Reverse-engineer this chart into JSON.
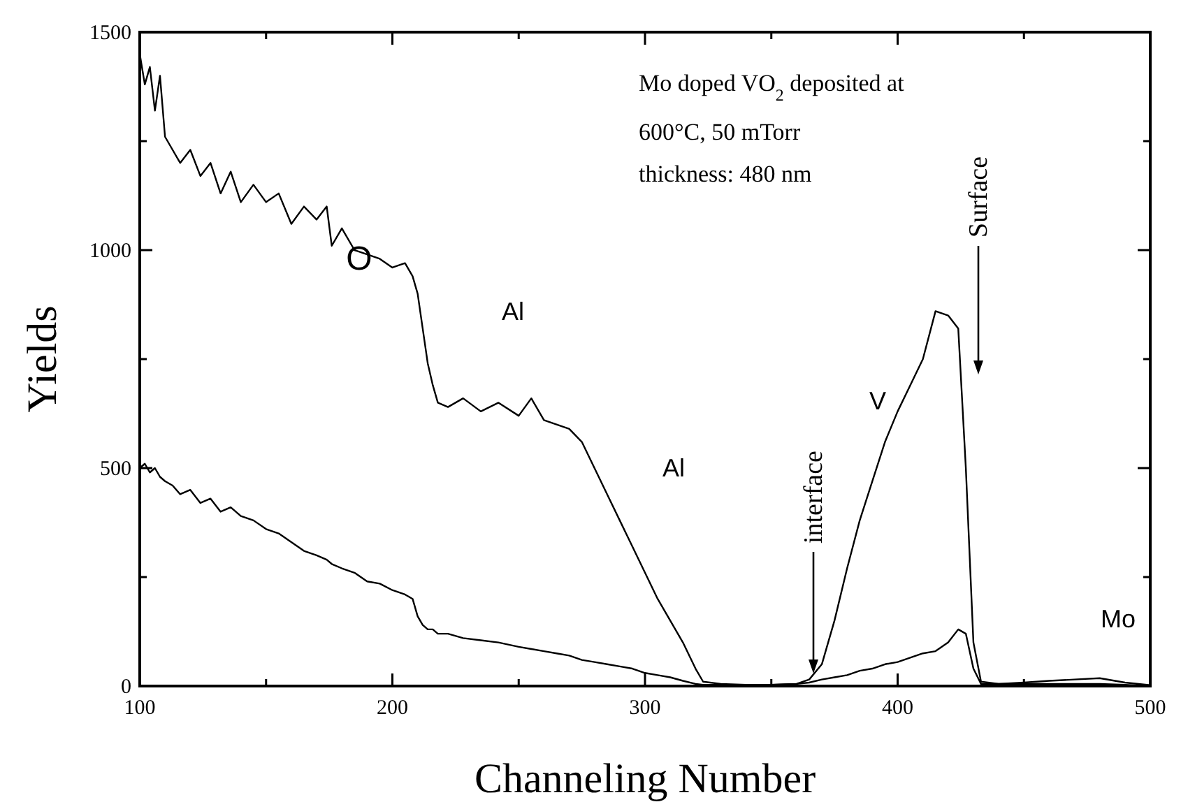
{
  "chart_data": {
    "type": "line",
    "xlabel": "Channeling Number",
    "ylabel": "Yields",
    "xlim": [
      100,
      500
    ],
    "ylim": [
      0,
      1500
    ],
    "xticks": [
      100,
      {
        "value": 150,
        "label": null
      },
      200,
      {
        "value": 250,
        "label": null
      },
      300,
      {
        "value": 350,
        "label": null
      },
      400,
      {
        "value": 450,
        "label": null
      },
      500
    ],
    "yticks": [
      0,
      {
        "value": 250,
        "label": null
      },
      500,
      {
        "value": 750,
        "label": null
      },
      1000,
      {
        "value": 1250,
        "label": null
      },
      1500
    ],
    "grid": false,
    "marker": "none",
    "line_style": "solid",
    "x": [
      100,
      102,
      104,
      106,
      108,
      110,
      113,
      116,
      120,
      124,
      128,
      132,
      136,
      140,
      145,
      150,
      155,
      160,
      165,
      170,
      174,
      176,
      180,
      185,
      190,
      195,
      200,
      205,
      208,
      210,
      212,
      214,
      216,
      218,
      222,
      228,
      235,
      242,
      250,
      255,
      260,
      265,
      270,
      275,
      280,
      285,
      290,
      295,
      300,
      305,
      310,
      315,
      320,
      323,
      330,
      340,
      350,
      360,
      365,
      370,
      375,
      380,
      385,
      390,
      395,
      400,
      405,
      410,
      415,
      420,
      424,
      427,
      430,
      433,
      440,
      450,
      460,
      470,
      480,
      490,
      500
    ],
    "series": [
      {
        "color": "#000000",
        "values": [
          1450,
          1380,
          1420,
          1320,
          1400,
          1260,
          1230,
          1200,
          1230,
          1170,
          1200,
          1130,
          1180,
          1110,
          1150,
          1110,
          1130,
          1060,
          1100,
          1070,
          1100,
          1010,
          1050,
          1000,
          990,
          980,
          960,
          970,
          940,
          900,
          820,
          740,
          690,
          650,
          640,
          660,
          630,
          650,
          620,
          660,
          610,
          600,
          590,
          560,
          500,
          440,
          380,
          320,
          260,
          200,
          150,
          100,
          40,
          10,
          5,
          3,
          3,
          5,
          15,
          50,
          150,
          270,
          380,
          470,
          560,
          630,
          690,
          750,
          860,
          850,
          820,
          500,
          100,
          10,
          5,
          8,
          12,
          15,
          18,
          8,
          2
        ]
      },
      {
        "color": "#000000",
        "values": [
          500,
          510,
          490,
          500,
          480,
          470,
          460,
          440,
          450,
          420,
          430,
          400,
          410,
          390,
          380,
          360,
          350,
          330,
          310,
          300,
          290,
          280,
          270,
          260,
          240,
          235,
          220,
          210,
          200,
          160,
          140,
          130,
          130,
          120,
          120,
          110,
          105,
          100,
          90,
          85,
          80,
          75,
          70,
          60,
          55,
          50,
          45,
          40,
          30,
          25,
          20,
          12,
          5,
          3,
          3,
          3,
          3,
          5,
          8,
          15,
          20,
          25,
          35,
          40,
          50,
          55,
          65,
          75,
          80,
          100,
          130,
          120,
          40,
          5,
          5,
          5,
          5,
          5,
          5,
          3,
          0
        ]
      }
    ],
    "annotations": [
      "Mo doped VO$_{2}$ deposited at",
      "600°C, 50 mTorr",
      "thickness: 480 nm",
      "O",
      "Al",
      "Al",
      "interface",
      "V",
      "Surface",
      "Mo"
    ]
  }
}
